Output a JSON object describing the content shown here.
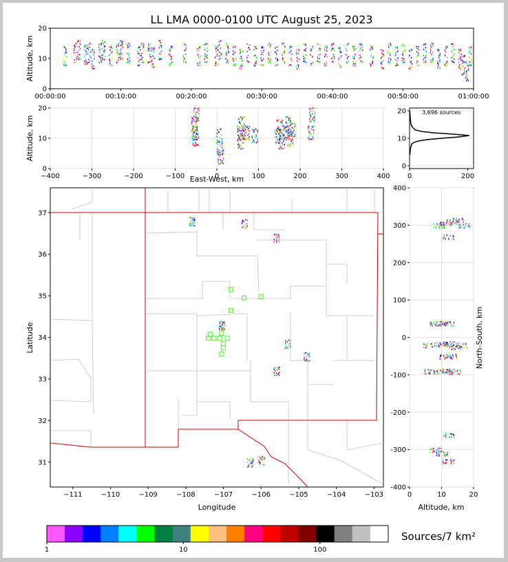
{
  "chart_data": [
    {
      "type": "scatter",
      "panel": "time-height",
      "title": "LL LMA 0000-0100 UTC August 25, 2023",
      "xlabel": "",
      "ylabel": "Altitude, km",
      "xlim": [
        0,
        60
      ],
      "ylim": [
        0,
        20
      ],
      "xticks": [
        "00:00:00",
        "00:10:00",
        "00:20:00",
        "00:30:00",
        "00:40:00",
        "00:50:00",
        "01:00:00"
      ],
      "xtick_values": [
        0,
        10,
        20,
        30,
        40,
        50,
        60
      ],
      "yticks": [
        0,
        10,
        20
      ],
      "points": [
        [
          2,
          11
        ],
        [
          3.5,
          12
        ],
        [
          4,
          13
        ],
        [
          5,
          11.5
        ],
        [
          5.5,
          12
        ],
        [
          6,
          10
        ],
        [
          7,
          12
        ],
        [
          7.5,
          13
        ],
        [
          8.5,
          11
        ],
        [
          9.5,
          12
        ],
        [
          10,
          13
        ],
        [
          11,
          12
        ],
        [
          12.5,
          11
        ],
        [
          13,
          12
        ],
        [
          14,
          12
        ],
        [
          14.5,
          10.5
        ],
        [
          15.5,
          13
        ],
        [
          17,
          11
        ],
        [
          19,
          12
        ],
        [
          21,
          11
        ],
        [
          22,
          12
        ],
        [
          23.5,
          11
        ],
        [
          24,
          13
        ],
        [
          25,
          12
        ],
        [
          26,
          11
        ],
        [
          27,
          10
        ],
        [
          28,
          12
        ],
        [
          29,
          11
        ],
        [
          30,
          11
        ],
        [
          31,
          12
        ],
        [
          32,
          11
        ],
        [
          33,
          12
        ],
        [
          34,
          11
        ],
        [
          35,
          10
        ],
        [
          36,
          12
        ],
        [
          37,
          11
        ],
        [
          38,
          12
        ],
        [
          39,
          11
        ],
        [
          40,
          12
        ],
        [
          41,
          10.5
        ],
        [
          42,
          12
        ],
        [
          43,
          11
        ],
        [
          44,
          12
        ],
        [
          45.5,
          11
        ],
        [
          47,
          10
        ],
        [
          48,
          12
        ],
        [
          49,
          11
        ],
        [
          50,
          12
        ],
        [
          51,
          10
        ],
        [
          52,
          11
        ],
        [
          53,
          12
        ],
        [
          54,
          12
        ],
        [
          55,
          10
        ],
        [
          56,
          11
        ],
        [
          57,
          12
        ],
        [
          58,
          10
        ],
        [
          58.5,
          8
        ],
        [
          59,
          6
        ],
        [
          59.5,
          11
        ]
      ]
    },
    {
      "type": "scatter",
      "panel": "east-west-height",
      "xlabel": "East-West, km",
      "ylabel": "Altitude, km",
      "xlim": [
        -400,
        400
      ],
      "ylim": [
        0,
        20
      ],
      "xticks": [
        -400,
        -300,
        -200,
        -100,
        0,
        100,
        200,
        300,
        400
      ],
      "yticks": [
        0,
        10,
        20
      ],
      "points": [
        [
          -55,
          12
        ],
        [
          -55,
          15
        ],
        [
          -50,
          18
        ],
        [
          -52,
          10
        ],
        [
          5,
          11
        ],
        [
          6,
          7
        ],
        [
          8,
          4
        ],
        [
          55,
          12
        ],
        [
          56,
          9
        ],
        [
          58,
          15
        ],
        [
          70,
          12
        ],
        [
          90,
          11
        ],
        [
          145,
          11
        ],
        [
          150,
          14
        ],
        [
          155,
          9
        ],
        [
          165,
          12
        ],
        [
          170,
          15
        ],
        [
          175,
          10
        ],
        [
          180,
          13
        ],
        [
          225,
          12
        ],
        [
          228,
          18
        ]
      ]
    },
    {
      "type": "line",
      "panel": "height-histogram",
      "annotation": "3,696 sources",
      "xlim": [
        0,
        220
      ],
      "ylim": [
        -1,
        21
      ],
      "xticks": [
        0,
        200
      ],
      "yticks": [
        0,
        10,
        20
      ],
      "x": [
        1,
        2,
        3,
        5,
        8,
        15,
        30,
        60,
        110,
        170,
        205,
        150,
        80,
        40,
        20,
        10,
        5,
        3,
        2,
        1
      ],
      "y": [
        4,
        5,
        6,
        7,
        8,
        8.5,
        9,
        9.5,
        10,
        10.5,
        11,
        11.5,
        12,
        12.5,
        13,
        14,
        15,
        16.5,
        18,
        20
      ]
    },
    {
      "type": "scatter",
      "panel": "plan-view",
      "xlabel": "Longitude",
      "ylabel": "Latitude",
      "xlim": [
        -111.6,
        -102.75
      ],
      "ylim": [
        30.4,
        37.6
      ],
      "xticks": [
        -111,
        -110,
        -109,
        -108,
        -107,
        -106,
        -105,
        -104,
        -103
      ],
      "yticks": [
        31,
        32,
        33,
        34,
        35,
        36,
        37
      ],
      "points": [
        [
          -107.85,
          36.8
        ],
        [
          -106.45,
          36.75
        ],
        [
          -105.6,
          36.4
        ],
        [
          -107.05,
          34.3
        ],
        [
          -105.3,
          33.85
        ],
        [
          -104.8,
          33.55
        ],
        [
          -105.6,
          33.2
        ],
        [
          -106.3,
          31.0
        ],
        [
          -106.0,
          31.05
        ]
      ],
      "stations": [
        [
          -106.8,
          35.15
        ],
        [
          -106.45,
          34.95
        ],
        [
          -106.0,
          34.98
        ],
        [
          -106.8,
          34.65
        ],
        [
          -107.05,
          34.2
        ],
        [
          -107.05,
          34.1
        ],
        [
          -107.35,
          34.07
        ],
        [
          -107.4,
          33.98
        ],
        [
          -107.25,
          33.98
        ],
        [
          -107.1,
          33.98
        ],
        [
          -106.9,
          33.98
        ],
        [
          -107.0,
          33.85
        ],
        [
          -107.0,
          33.75
        ],
        [
          -107.05,
          33.6
        ]
      ]
    },
    {
      "type": "scatter",
      "panel": "height-north-south",
      "xlabel": "Altitude, km",
      "ylabel": "North-South, km",
      "xlim": [
        0,
        20
      ],
      "ylim": [
        -400,
        400
      ],
      "xticks": [
        0,
        10,
        20
      ],
      "yticks": [
        -400,
        -300,
        -200,
        -100,
        0,
        100,
        200,
        300,
        400
      ],
      "points": [
        [
          9,
          300
        ],
        [
          11,
          305
        ],
        [
          13,
          310
        ],
        [
          15,
          315
        ],
        [
          17,
          300
        ],
        [
          12,
          270
        ],
        [
          8,
          38
        ],
        [
          10,
          38
        ],
        [
          12,
          38
        ],
        [
          6,
          -20
        ],
        [
          10,
          -18
        ],
        [
          12,
          -15
        ],
        [
          14,
          -25
        ],
        [
          16,
          -20
        ],
        [
          11,
          -50
        ],
        [
          13,
          -50
        ],
        [
          6,
          -90
        ],
        [
          10,
          -90
        ],
        [
          12,
          -88
        ],
        [
          14,
          -92
        ],
        [
          10,
          -310
        ],
        [
          12,
          -330
        ],
        [
          8,
          -300
        ],
        [
          12,
          -260
        ]
      ]
    }
  ],
  "colorbar": {
    "label": "Sources/7 km²",
    "tick_labels": [
      "1",
      "10",
      "100"
    ],
    "colors": [
      "#ff55ff",
      "#8c00ff",
      "#0000ff",
      "#0080ff",
      "#00ffff",
      "#00ff00",
      "#008040",
      "#408080",
      "#ffff00",
      "#ffc080",
      "#ff8000",
      "#ff0080",
      "#ff0000",
      "#c00000",
      "#800000",
      "#000000",
      "#808080",
      "#c0c0c0",
      "#ffffff"
    ]
  },
  "colors": {
    "frame": "#c8c8c8",
    "state_border": "#cc0000",
    "county_border": "#c0c0c0",
    "station": "#66ee44",
    "grid": "#e0e0e0"
  }
}
